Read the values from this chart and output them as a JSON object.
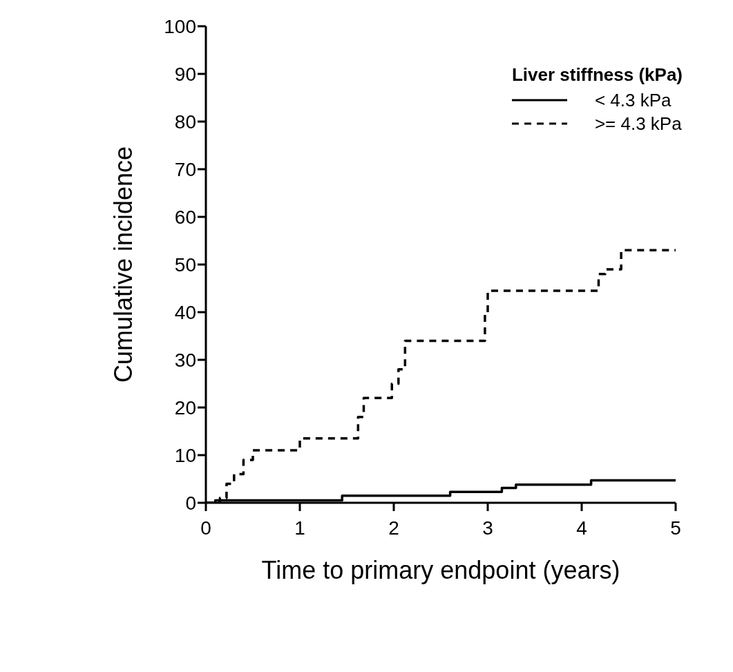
{
  "chart_data": {
    "type": "step",
    "xlabel": "Time to primary endpoint (years)",
    "ylabel": "Cumulative incidence",
    "legend_title": "Liver stiffness (kPa)",
    "legend": "top right",
    "xlim": [
      0,
      5
    ],
    "xticks": [
      0,
      1,
      2,
      3,
      4,
      5
    ],
    "ylim": [
      0,
      100
    ],
    "yticks": [
      0,
      10,
      20,
      30,
      40,
      50,
      60,
      70,
      80,
      90,
      100
    ],
    "series": [
      {
        "name": "< 4.3 kPa",
        "color": "#000000",
        "line_style": "solid",
        "x": [
          0,
          0.1,
          1.45,
          2.6,
          3.15,
          3.3,
          4.1,
          5.0
        ],
        "values": [
          0,
          0.5,
          1.5,
          2.3,
          3.1,
          3.8,
          4.7,
          4.7
        ]
      },
      {
        "name": ">= 4.3 kPa",
        "color": "#000000",
        "line_style": "dashed",
        "x": [
          0,
          0.15,
          0.22,
          0.3,
          0.4,
          0.5,
          1.0,
          1.62,
          1.68,
          1.98,
          2.05,
          2.12,
          2.97,
          3.0,
          4.18,
          4.25,
          4.42,
          5.0
        ],
        "values": [
          0,
          1,
          4,
          6,
          9,
          11,
          13.5,
          18,
          22,
          25,
          28,
          34,
          40,
          44.5,
          48,
          49,
          53,
          53
        ]
      }
    ]
  }
}
